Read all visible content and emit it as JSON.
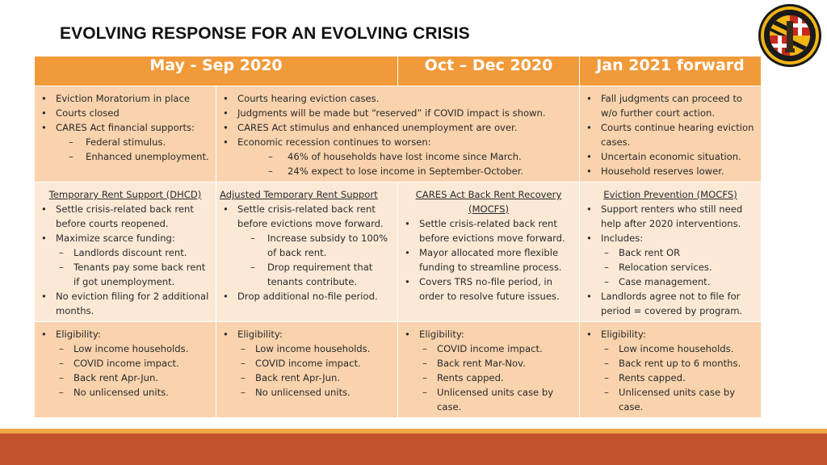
{
  "title": "EVOLVING RESPONSE FOR AN EVOLVING CRISIS",
  "seal": {
    "text": "CITY OF BALTIMORE",
    "colors": {
      "ring": "#1a1a1a",
      "gold": "#f2b516",
      "red": "#c8281e"
    }
  },
  "columns": [
    "May - Sep 2020",
    "Oct – Dec 2020",
    "Jan 2021 forward"
  ],
  "row1": {
    "col1": [
      {
        "text": "Eviction Moratorium in place"
      },
      {
        "text": "Courts closed"
      },
      {
        "text": "CARES Act financial supports:",
        "sub": [
          "Federal stimulus.",
          "Enhanced unemployment."
        ]
      }
    ],
    "col2": [
      {
        "text": "Courts hearing eviction cases."
      },
      {
        "text": "Judgments will be made but “reserved” if COVID impact is shown."
      },
      {
        "text": "CARES Act stimulus and enhanced unemployment are over."
      },
      {
        "text": "Economic recession continues to worsen:",
        "sub": [
          "46% of households have lost income since March.",
          "24% expect to lose income in September-October."
        ]
      }
    ],
    "col4": [
      {
        "text": "Fall judgments can proceed to w/o further court action."
      },
      {
        "text": "Courts continue hearing eviction cases."
      },
      {
        "text": "Uncertain economic situation."
      },
      {
        "text": "Household reserves lower."
      }
    ]
  },
  "row2": {
    "col1": {
      "title": "Temporary Rent Support (DHCD)",
      "items": [
        {
          "text": "Settle crisis-related back rent before courts reopened."
        },
        {
          "text": "Maximize scarce funding:",
          "sub": [
            "Landlords discount rent.",
            "Tenants pay some back rent if got unemployment."
          ]
        },
        {
          "text": "No eviction filing for 2 additional months."
        }
      ]
    },
    "col2": {
      "title": "Adjusted Temporary Rent Support",
      "items": [
        {
          "text": "Settle crisis-related back rent before evictions move forward.",
          "sub": [
            "Increase subsidy to 100% of back rent.",
            "Drop requirement that tenants contribute."
          ]
        },
        {
          "text": "Drop additional no-file period."
        }
      ]
    },
    "col3": {
      "title": "CARES Act Back Rent Recovery (MOCFS)",
      "items": [
        {
          "text": "Settle crisis-related back rent before evictions move forward."
        },
        {
          "text": "Mayor allocated more flexible funding to streamline process."
        },
        {
          "text": "Covers TRS no-file period, in order to resolve future issues."
        }
      ]
    },
    "col4": {
      "title": "Eviction Prevention (MOCFS)",
      "items": [
        {
          "text": "Support renters who still need help after 2020 interventions."
        },
        {
          "text": "Includes:",
          "sub": [
            "Back rent OR",
            "Relocation services.",
            "Case management."
          ]
        },
        {
          "text": "Landlords agree not to file for period = covered by program."
        }
      ]
    }
  },
  "row3": {
    "col1": {
      "label": "Eligibility:",
      "sub": [
        "Low income households.",
        "COVID income impact.",
        "Back rent Apr-Jun.",
        "No unlicensed units."
      ]
    },
    "col2": {
      "label": "Eligibility:",
      "sub": [
        "Low income households.",
        "COVID income impact.",
        "Back rent Apr-Jun.",
        "No unlicensed units."
      ]
    },
    "col3": {
      "label": "Eligibility:",
      "sub": [
        "COVID income impact.",
        "Back rent Mar-Nov.",
        "Rents capped.",
        "Unlicensed units case by case."
      ]
    },
    "col4": {
      "label": "Eligibility:",
      "sub": [
        "Low income households.",
        "Back rent up to 6 months.",
        "Rents capped.",
        "Unlicensed units case by case."
      ]
    }
  }
}
